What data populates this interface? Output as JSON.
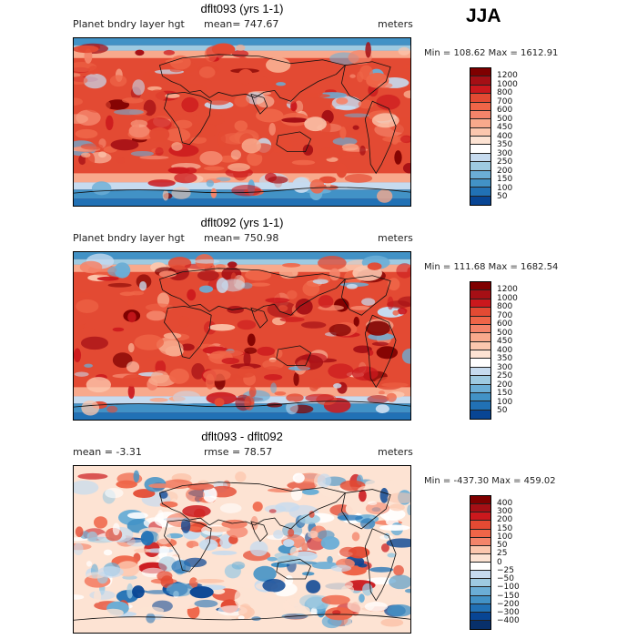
{
  "season": "JJA",
  "colors": {
    "pos": [
      "#7f0000",
      "#a50f15",
      "#cb181d",
      "#e34a33",
      "#ef6548",
      "#f4846a",
      "#f8a98c",
      "#fcc7ae",
      "#fde3d3"
    ],
    "neutral": "#fdf6f0",
    "neg": [
      "#deebf7",
      "#c6dbef",
      "#9ecae1",
      "#6baed6",
      "#4292c6",
      "#2171b5",
      "#084594",
      "#081d58"
    ]
  },
  "panels": [
    {
      "id": "dflt093",
      "title": "dflt093 (yrs 1-1)",
      "left": "Planet bndry layer hgt",
      "middle": "mean= 747.67",
      "right": "meters",
      "minmax": "Min = 108.62 Max = 1612.91",
      "kind": "field",
      "levels": [
        "1200",
        "1000",
        "800",
        "700",
        "600",
        "500",
        "450",
        "400",
        "350",
        "300",
        "250",
        "200",
        "150",
        "100",
        "50"
      ],
      "colors": [
        "#7f0000",
        "#a50f15",
        "#cb181d",
        "#e34a33",
        "#ef6548",
        "#f4846a",
        "#f8a98c",
        "#fcc7ae",
        "#fde3d3",
        "#ffffff",
        "#c6dbef",
        "#9ecae1",
        "#6baed6",
        "#4292c6",
        "#2171b5",
        "#084594"
      ],
      "seed": 11
    },
    {
      "id": "dflt092",
      "title": "dflt092 (yrs 1-1)",
      "left": "Planet bndry layer hgt",
      "middle": "mean= 750.98",
      "right": "meters",
      "minmax": "Min = 111.68 Max = 1682.54",
      "kind": "field",
      "levels": [
        "1200",
        "1000",
        "800",
        "700",
        "600",
        "500",
        "450",
        "400",
        "350",
        "300",
        "250",
        "200",
        "150",
        "100",
        "50"
      ],
      "colors": [
        "#7f0000",
        "#a50f15",
        "#cb181d",
        "#e34a33",
        "#ef6548",
        "#f4846a",
        "#f8a98c",
        "#fcc7ae",
        "#fde3d3",
        "#ffffff",
        "#c6dbef",
        "#9ecae1",
        "#6baed6",
        "#4292c6",
        "#2171b5",
        "#084594"
      ],
      "seed": 23
    },
    {
      "id": "diff",
      "title": "dflt093 - dflt092",
      "left": "mean =   -3.31",
      "middle": "rmse =   78.57",
      "right": "meters",
      "minmax": "Min = -437.30 Max = 459.02",
      "kind": "diff",
      "levels": [
        "400",
        "300",
        "200",
        "150",
        "100",
        "50",
        "25",
        "0",
        "−25",
        "−50",
        "−100",
        "−150",
        "−200",
        "−300",
        "−400"
      ],
      "colors": [
        "#7f0000",
        "#a50f15",
        "#cb181d",
        "#e34a33",
        "#ef6548",
        "#f4846a",
        "#fcc7ae",
        "#fde3d3",
        "#ffffff",
        "#c6dbef",
        "#9ecae1",
        "#6baed6",
        "#4292c6",
        "#2171b5",
        "#084594",
        "#08306b"
      ],
      "seed": 37
    }
  ]
}
